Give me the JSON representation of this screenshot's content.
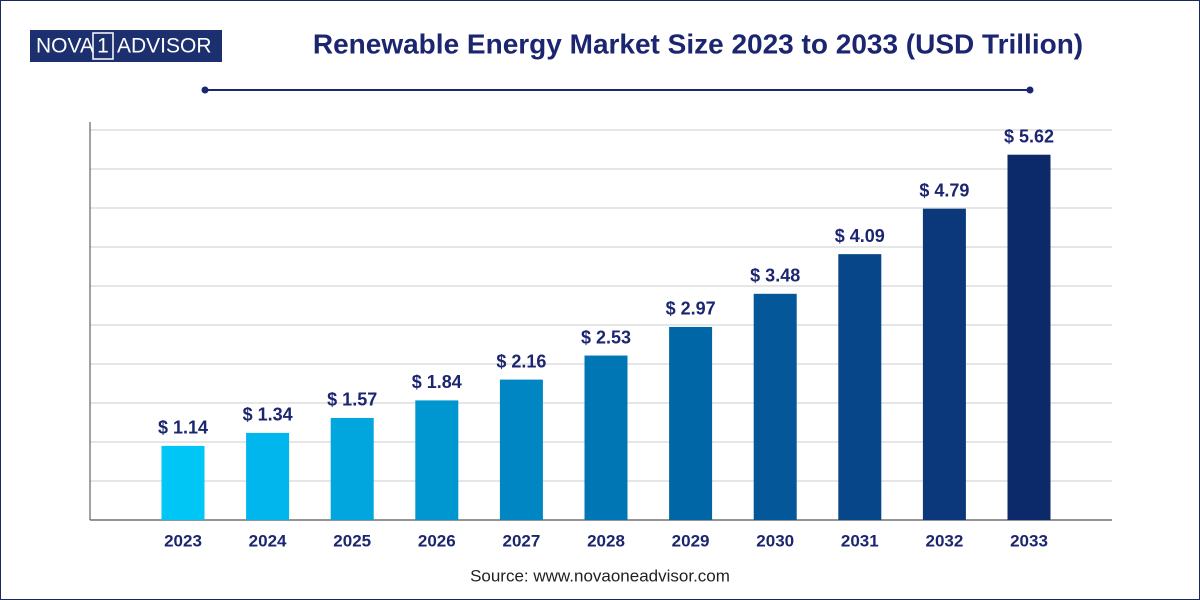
{
  "logo": {
    "left": "NOVA",
    "mark": "1",
    "right": "ADVISOR"
  },
  "source": "Source: www.novaoneadvisor.com",
  "chart_data": {
    "type": "bar",
    "title": "Renewable Energy Market Size 2023 to 2033 (USD Trillion)",
    "categories": [
      "2023",
      "2024",
      "2025",
      "2026",
      "2027",
      "2028",
      "2029",
      "2030",
      "2031",
      "2032",
      "2033"
    ],
    "values": [
      1.14,
      1.34,
      1.57,
      1.84,
      2.16,
      2.53,
      2.97,
      3.48,
      4.09,
      4.79,
      5.62
    ],
    "value_labels": [
      "$ 1.14",
      "$ 1.34",
      "$ 1.57",
      "$ 1.84",
      "$ 2.16",
      "$ 2.53",
      "$ 2.97",
      "$ 3.48",
      "$ 4.09",
      "$ 4.79",
      "$ 5.62"
    ],
    "colors": [
      "#00c6f6",
      "#00b6ec",
      "#00a6dd",
      "#0096cf",
      "#0086c2",
      "#0077b4",
      "#0066a6",
      "#045798",
      "#074789",
      "#0a387a",
      "#0c2a6a"
    ],
    "ylim": [
      0,
      6
    ],
    "yticks": [
      0,
      0.6,
      1.2,
      1.8,
      2.4,
      3,
      3.6,
      4.2,
      4.8,
      5.4,
      6
    ],
    "grid": true
  }
}
